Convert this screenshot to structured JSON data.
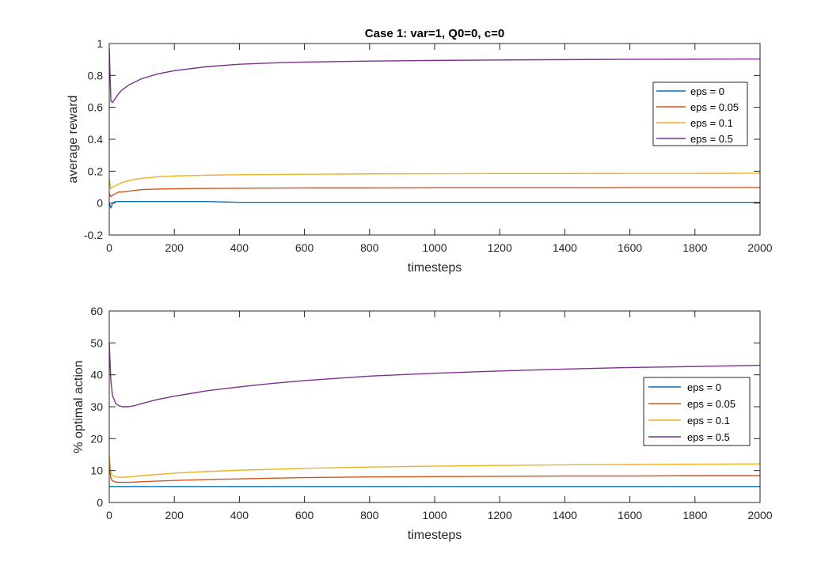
{
  "colors": {
    "eps_0": "#0072BD",
    "eps_0_05": "#D95319",
    "eps_0_1": "#EDB120",
    "eps_0_5": "#7E2F8E",
    "axis": "#262626"
  },
  "chart_data": [
    {
      "type": "line",
      "title": "Case 1: var=1, Q0=0, c=0",
      "xlabel": "timesteps",
      "ylabel": "average reward",
      "xlim": [
        0,
        2000
      ],
      "ylim": [
        -0.2,
        1
      ],
      "xticks": [
        "0",
        "200",
        "400",
        "600",
        "800",
        "1000",
        "1200",
        "1400",
        "1600",
        "1800",
        "2000"
      ],
      "yticks": [
        "-0.2",
        "0",
        "0.2",
        "0.4",
        "0.6",
        "0.8",
        "1"
      ],
      "grid": false,
      "legend_position": "upper-right",
      "x": [
        0,
        5,
        10,
        20,
        30,
        40,
        60,
        80,
        100,
        150,
        200,
        300,
        400,
        500,
        600,
        800,
        1000,
        1200,
        1400,
        1600,
        1800,
        2000
      ],
      "series": [
        {
          "name": "eps = 0",
          "color_key": "eps_0",
          "values": [
            0.0,
            -0.03,
            0.0,
            0.01,
            0.01,
            0.01,
            0.01,
            0.01,
            0.01,
            0.01,
            0.01,
            0.01,
            0.005,
            0.005,
            0.005,
            0.005,
            0.005,
            0.005,
            0.005,
            0.005,
            0.005,
            0.005
          ]
        },
        {
          "name": "eps = 0.05",
          "color_key": "eps_0_05",
          "values": [
            0.06,
            0.04,
            0.05,
            0.06,
            0.07,
            0.07,
            0.075,
            0.08,
            0.085,
            0.088,
            0.09,
            0.092,
            0.093,
            0.094,
            0.095,
            0.095,
            0.096,
            0.096,
            0.096,
            0.097,
            0.097,
            0.098
          ]
        },
        {
          "name": "eps = 0.1",
          "color_key": "eps_0_1",
          "values": [
            0.15,
            0.09,
            0.1,
            0.11,
            0.12,
            0.13,
            0.14,
            0.15,
            0.155,
            0.165,
            0.17,
            0.175,
            0.178,
            0.179,
            0.181,
            0.183,
            0.184,
            0.185,
            0.185,
            0.186,
            0.186,
            0.187
          ]
        },
        {
          "name": "eps = 0.5",
          "color_key": "eps_0_5",
          "values": [
            0.97,
            0.64,
            0.63,
            0.66,
            0.69,
            0.71,
            0.74,
            0.76,
            0.78,
            0.81,
            0.83,
            0.855,
            0.87,
            0.878,
            0.884,
            0.89,
            0.894,
            0.897,
            0.899,
            0.901,
            0.902,
            0.903
          ]
        }
      ]
    },
    {
      "type": "line",
      "title": "",
      "xlabel": "timesteps",
      "ylabel": "% optimal action",
      "xlim": [
        0,
        2000
      ],
      "ylim": [
        0,
        60
      ],
      "xticks": [
        "0",
        "200",
        "400",
        "600",
        "800",
        "1000",
        "1200",
        "1400",
        "1600",
        "1800",
        "2000"
      ],
      "yticks": [
        "0",
        "10",
        "20",
        "30",
        "40",
        "50",
        "60"
      ],
      "grid": false,
      "legend_position": "right",
      "x": [
        0,
        5,
        10,
        20,
        30,
        40,
        60,
        80,
        100,
        150,
        200,
        300,
        400,
        500,
        600,
        800,
        1000,
        1200,
        1400,
        1600,
        1800,
        2000
      ],
      "series": [
        {
          "name": "eps = 0",
          "color_key": "eps_0",
          "values": [
            5.0,
            5.0,
            5.0,
            5.0,
            5.0,
            5.0,
            5.0,
            5.0,
            5.0,
            5.0,
            5.0,
            5.0,
            5.0,
            5.0,
            5.0,
            5.0,
            5.0,
            5.0,
            5.0,
            5.0,
            5.0,
            5.0
          ]
        },
        {
          "name": "eps = 0.05",
          "color_key": "eps_0_05",
          "values": [
            12.0,
            7.5,
            6.8,
            6.4,
            6.3,
            6.3,
            6.3,
            6.4,
            6.5,
            6.7,
            6.9,
            7.2,
            7.4,
            7.6,
            7.8,
            8.0,
            8.1,
            8.2,
            8.3,
            8.3,
            8.4,
            8.4
          ]
        },
        {
          "name": "eps = 0.1",
          "color_key": "eps_0_1",
          "values": [
            14.5,
            9.5,
            8.5,
            8.0,
            7.9,
            7.9,
            8.0,
            8.2,
            8.4,
            8.8,
            9.2,
            9.7,
            10.1,
            10.4,
            10.7,
            11.1,
            11.4,
            11.6,
            11.8,
            11.9,
            12.0,
            12.1
          ]
        },
        {
          "name": "eps = 0.5",
          "color_key": "eps_0_5",
          "values": [
            50.0,
            38.0,
            33.5,
            31.0,
            30.3,
            30.0,
            30.0,
            30.4,
            31.0,
            32.3,
            33.3,
            35.0,
            36.2,
            37.3,
            38.2,
            39.6,
            40.5,
            41.2,
            41.8,
            42.3,
            42.6,
            43.0
          ]
        }
      ]
    }
  ]
}
